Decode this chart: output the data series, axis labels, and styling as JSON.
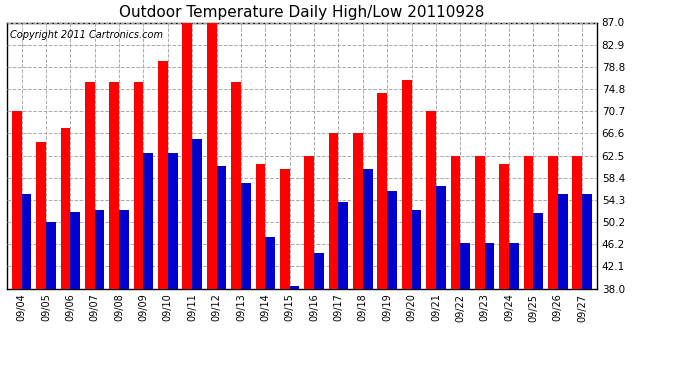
{
  "title": "Outdoor Temperature Daily High/Low 20110928",
  "copyright": "Copyright 2011 Cartronics.com",
  "dates": [
    "09/04",
    "09/05",
    "09/06",
    "09/07",
    "09/08",
    "09/09",
    "09/10",
    "09/11",
    "09/12",
    "09/13",
    "09/14",
    "09/15",
    "09/16",
    "09/17",
    "09/18",
    "09/19",
    "09/20",
    "09/21",
    "09/22",
    "09/23",
    "09/24",
    "09/25",
    "09/26",
    "09/27"
  ],
  "highs": [
    70.7,
    65.0,
    67.5,
    76.0,
    76.0,
    76.0,
    80.0,
    87.0,
    87.0,
    76.0,
    61.0,
    60.0,
    62.5,
    66.6,
    66.6,
    74.0,
    76.5,
    70.7,
    62.5,
    62.5,
    61.0,
    62.5,
    62.5,
    62.5
  ],
  "lows": [
    55.5,
    50.2,
    52.2,
    52.5,
    52.5,
    63.0,
    63.0,
    65.5,
    60.5,
    57.5,
    47.5,
    38.5,
    44.5,
    54.0,
    60.0,
    56.0,
    52.5,
    57.0,
    46.5,
    46.5,
    46.5,
    52.0,
    55.5,
    55.5
  ],
  "ylim": [
    38.0,
    87.0
  ],
  "yticks": [
    38.0,
    42.1,
    46.2,
    50.2,
    54.3,
    58.4,
    62.5,
    66.6,
    70.7,
    74.8,
    78.8,
    82.9,
    87.0
  ],
  "high_color": "#ff0000",
  "low_color": "#0000cc",
  "bg_color": "#ffffff",
  "plot_bg_color": "#ffffff",
  "grid_color": "#aaaaaa",
  "title_fontsize": 11,
  "copyright_fontsize": 7
}
